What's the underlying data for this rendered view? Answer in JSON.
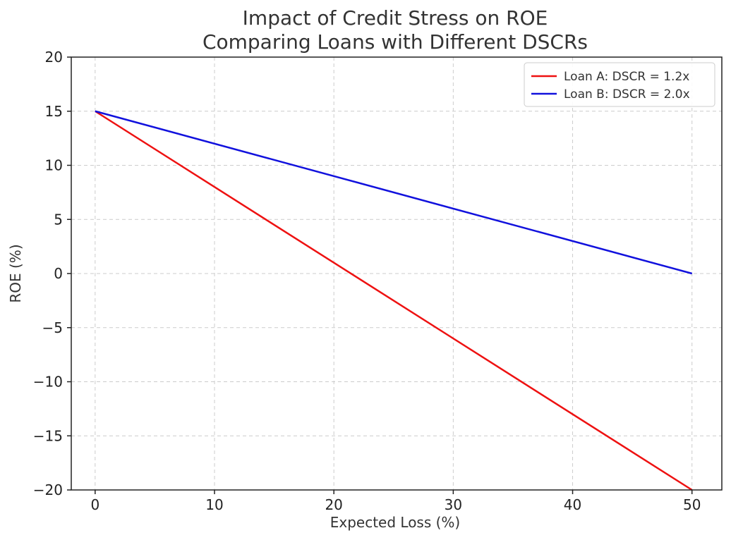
{
  "chart_data": {
    "type": "line",
    "title_lines": [
      "Impact of Credit Stress on ROE",
      "Comparing Loans with Different DSCRs"
    ],
    "xlabel": "Expected Loss (%)",
    "ylabel": "ROE (%)",
    "xlim": [
      -2,
      52.5
    ],
    "ylim": [
      -20,
      20
    ],
    "xticks": [
      0,
      10,
      20,
      30,
      40,
      50
    ],
    "yticks": [
      -20,
      -15,
      -10,
      -5,
      0,
      5,
      10,
      15,
      20
    ],
    "grid": true,
    "legend_position": "top-right",
    "series": [
      {
        "name": "Loan A: DSCR = 1.2x",
        "color": "#ee1111",
        "x": [
          0,
          50
        ],
        "y": [
          15,
          -20
        ]
      },
      {
        "name": "Loan B: DSCR = 2.0x",
        "color": "#1111dd",
        "x": [
          0,
          50
        ],
        "y": [
          15,
          0
        ]
      }
    ]
  }
}
